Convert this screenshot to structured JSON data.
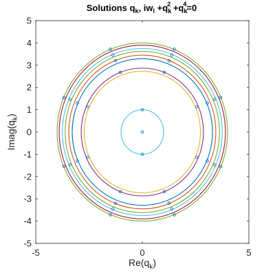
{
  "chart_data": {
    "type": "scatter",
    "title": "Solutions q_k, iw_l +q_k^2 +q_k^4=0",
    "title_parts": {
      "main": "Solutions q",
      "sub_k1": "k",
      "mid1": ", iw",
      "sub_l": "l",
      "mid2": " +q",
      "sub_k2": "k",
      "sup_2": "2",
      "mid3": " +q",
      "sub_k3": "k",
      "sup_4": "4",
      "tail": "=0"
    },
    "xlabel": "Re(q_k)",
    "xlabel_parts": {
      "main": "Re(q",
      "sub": "k",
      "tail": ")"
    },
    "ylabel": "Imag(q_k)",
    "ylabel_parts": {
      "main": "Imag(q",
      "sub": "k",
      "tail": ")"
    },
    "xlim": [
      -5,
      5
    ],
    "ylim": [
      -5,
      5
    ],
    "xticks": [
      -5,
      0,
      5
    ],
    "yticks": [
      5,
      4,
      3,
      2,
      1,
      0,
      -1,
      -2,
      -3,
      -4,
      -5
    ],
    "grid": false,
    "circles": [
      {
        "radius": 1.0,
        "color": "#4DBEEE"
      },
      {
        "radius": 2.73,
        "color": "#EDB120"
      },
      {
        "radius": 2.87,
        "color": "#7E2F8E"
      },
      {
        "radius": 3.29,
        "color": "#0072BD"
      },
      {
        "radius": 3.45,
        "color": "#D95319"
      },
      {
        "radius": 3.62,
        "color": "#77AC30"
      },
      {
        "radius": 3.75,
        "color": "#4DBEEE"
      },
      {
        "radius": 3.9,
        "color": "#A2142F"
      },
      {
        "radius": 4.0,
        "color": "#77AC30"
      }
    ],
    "points": [
      {
        "x": 0,
        "y": 1
      },
      {
        "x": 0,
        "y": 0
      },
      {
        "x": 0,
        "y": -1
      },
      {
        "x": -2.55,
        "y": 1.13
      },
      {
        "x": 2.55,
        "y": 1.13
      },
      {
        "x": -2.55,
        "y": -1.13
      },
      {
        "x": 2.55,
        "y": -1.13
      },
      {
        "x": -1.03,
        "y": 2.68
      },
      {
        "x": 1.03,
        "y": 2.68
      },
      {
        "x": -1.03,
        "y": -2.68
      },
      {
        "x": 1.03,
        "y": -2.68
      },
      {
        "x": -3.05,
        "y": 1.3
      },
      {
        "x": 3.05,
        "y": 1.3
      },
      {
        "x": -3.05,
        "y": -1.3
      },
      {
        "x": 3.05,
        "y": -1.3
      },
      {
        "x": -1.25,
        "y": 3.2
      },
      {
        "x": 1.25,
        "y": 3.2
      },
      {
        "x": -1.25,
        "y": -3.2
      },
      {
        "x": 1.25,
        "y": -3.2
      },
      {
        "x": -3.4,
        "y": 1.47
      },
      {
        "x": 3.4,
        "y": 1.47
      },
      {
        "x": -3.4,
        "y": -1.47
      },
      {
        "x": 3.4,
        "y": -1.47
      },
      {
        "x": -3.68,
        "y": 1.55
      },
      {
        "x": 3.68,
        "y": 1.55
      },
      {
        "x": -3.68,
        "y": -1.55
      },
      {
        "x": 3.68,
        "y": -1.55
      },
      {
        "x": -1.38,
        "y": 3.45
      },
      {
        "x": 1.38,
        "y": 3.45
      },
      {
        "x": -1.38,
        "y": -3.45
      },
      {
        "x": 1.38,
        "y": -3.45
      },
      {
        "x": -1.5,
        "y": 3.72
      },
      {
        "x": 1.5,
        "y": 3.72
      },
      {
        "x": -1.5,
        "y": -3.72
      },
      {
        "x": 1.5,
        "y": -3.72
      }
    ],
    "point_color": "#0072BD"
  }
}
